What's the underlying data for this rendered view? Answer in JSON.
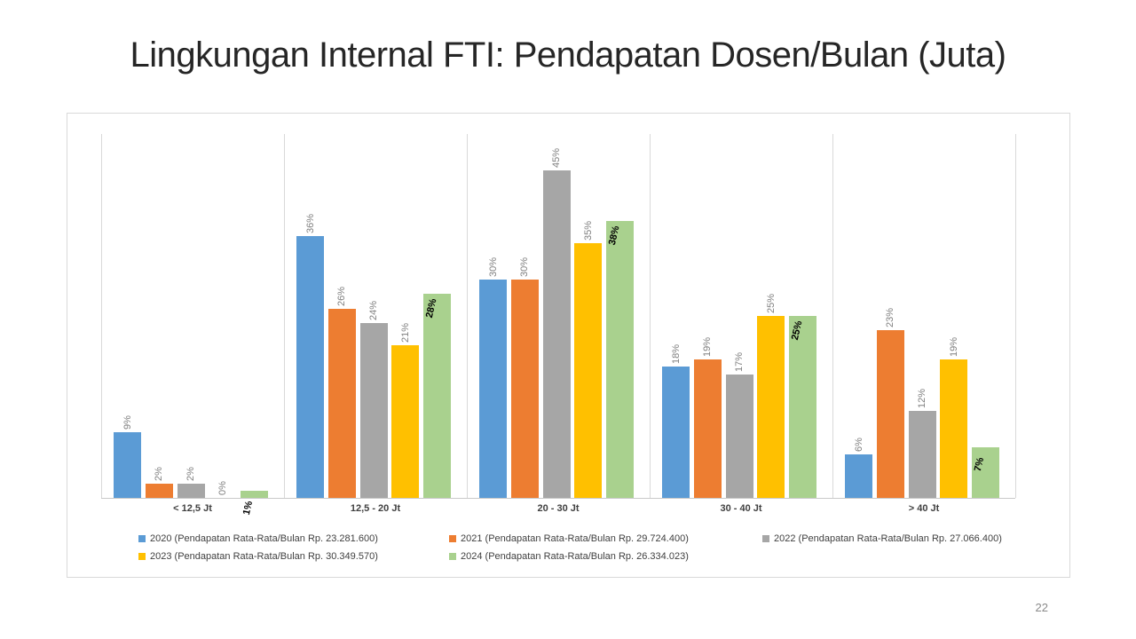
{
  "slide": {
    "title": "Lingkungan Internal FTI: Pendapatan Dosen/Bulan (Juta)",
    "page_number": "22"
  },
  "chart_data": {
    "type": "bar",
    "title": "Lingkungan Internal FTI: Pendapatan Dosen/Bulan (Juta)",
    "categories": [
      "< 12,5 Jt",
      "12,5 - 20 Jt",
      "20 - 30 Jt",
      "30 - 40 Jt",
      "> 40 Jt"
    ],
    "series": [
      {
        "year": "2020",
        "name": "2020 (Pendapatan Rata-Rata/Bulan Rp. 23.281.600)",
        "color": "#5B9BD5",
        "values": [
          9,
          36,
          30,
          18,
          6
        ],
        "labels": [
          "9%",
          "36%",
          "30%",
          "18%",
          "6%"
        ],
        "label_color": "#808080",
        "label_bold": false
      },
      {
        "year": "2021",
        "name": "2021 (Pendapatan Rata-Rata/Bulan Rp. 29.724.400)",
        "color": "#ED7D31",
        "values": [
          2,
          26,
          30,
          19,
          23
        ],
        "labels": [
          "2%",
          "26%",
          "30%",
          "19%",
          "23%"
        ],
        "label_color": "#808080",
        "label_bold": false
      },
      {
        "year": "2022",
        "name": "2022 (Pendapatan Rata-Rata/Bulan Rp. 27.066.400)",
        "color": "#A6A6A6",
        "values": [
          2,
          24,
          45,
          17,
          12
        ],
        "labels": [
          "2%",
          "24%",
          "45%",
          "17%",
          "12%"
        ],
        "label_color": "#808080",
        "label_bold": false
      },
      {
        "year": "2023",
        "name": "2023 (Pendapatan Rata-Rata/Bulan Rp. 30.349.570)",
        "color": "#FFC000",
        "values": [
          0,
          21,
          35,
          25,
          19
        ],
        "labels": [
          "0%",
          "21%",
          "35%",
          "25%",
          "19%"
        ],
        "label_color": "#808080",
        "label_bold": false
      },
      {
        "year": "2024",
        "name": "2024 (Pendapatan Rata-Rata/Bulan Rp. 26.334.023)",
        "color": "#A9D18E",
        "values": [
          1,
          28,
          38,
          25,
          7
        ],
        "labels": [
          "1%",
          "28%",
          "38%",
          "25%",
          "7%"
        ],
        "label_color": "#000000",
        "label_bold": true
      }
    ],
    "ylim": [
      0,
      50
    ],
    "xlabel": "",
    "ylabel": "",
    "y_axis_visible": false,
    "grid": "vertical-category-separators",
    "legend_position": "bottom-inside",
    "data_labels": "rotated-90-above-bars"
  }
}
